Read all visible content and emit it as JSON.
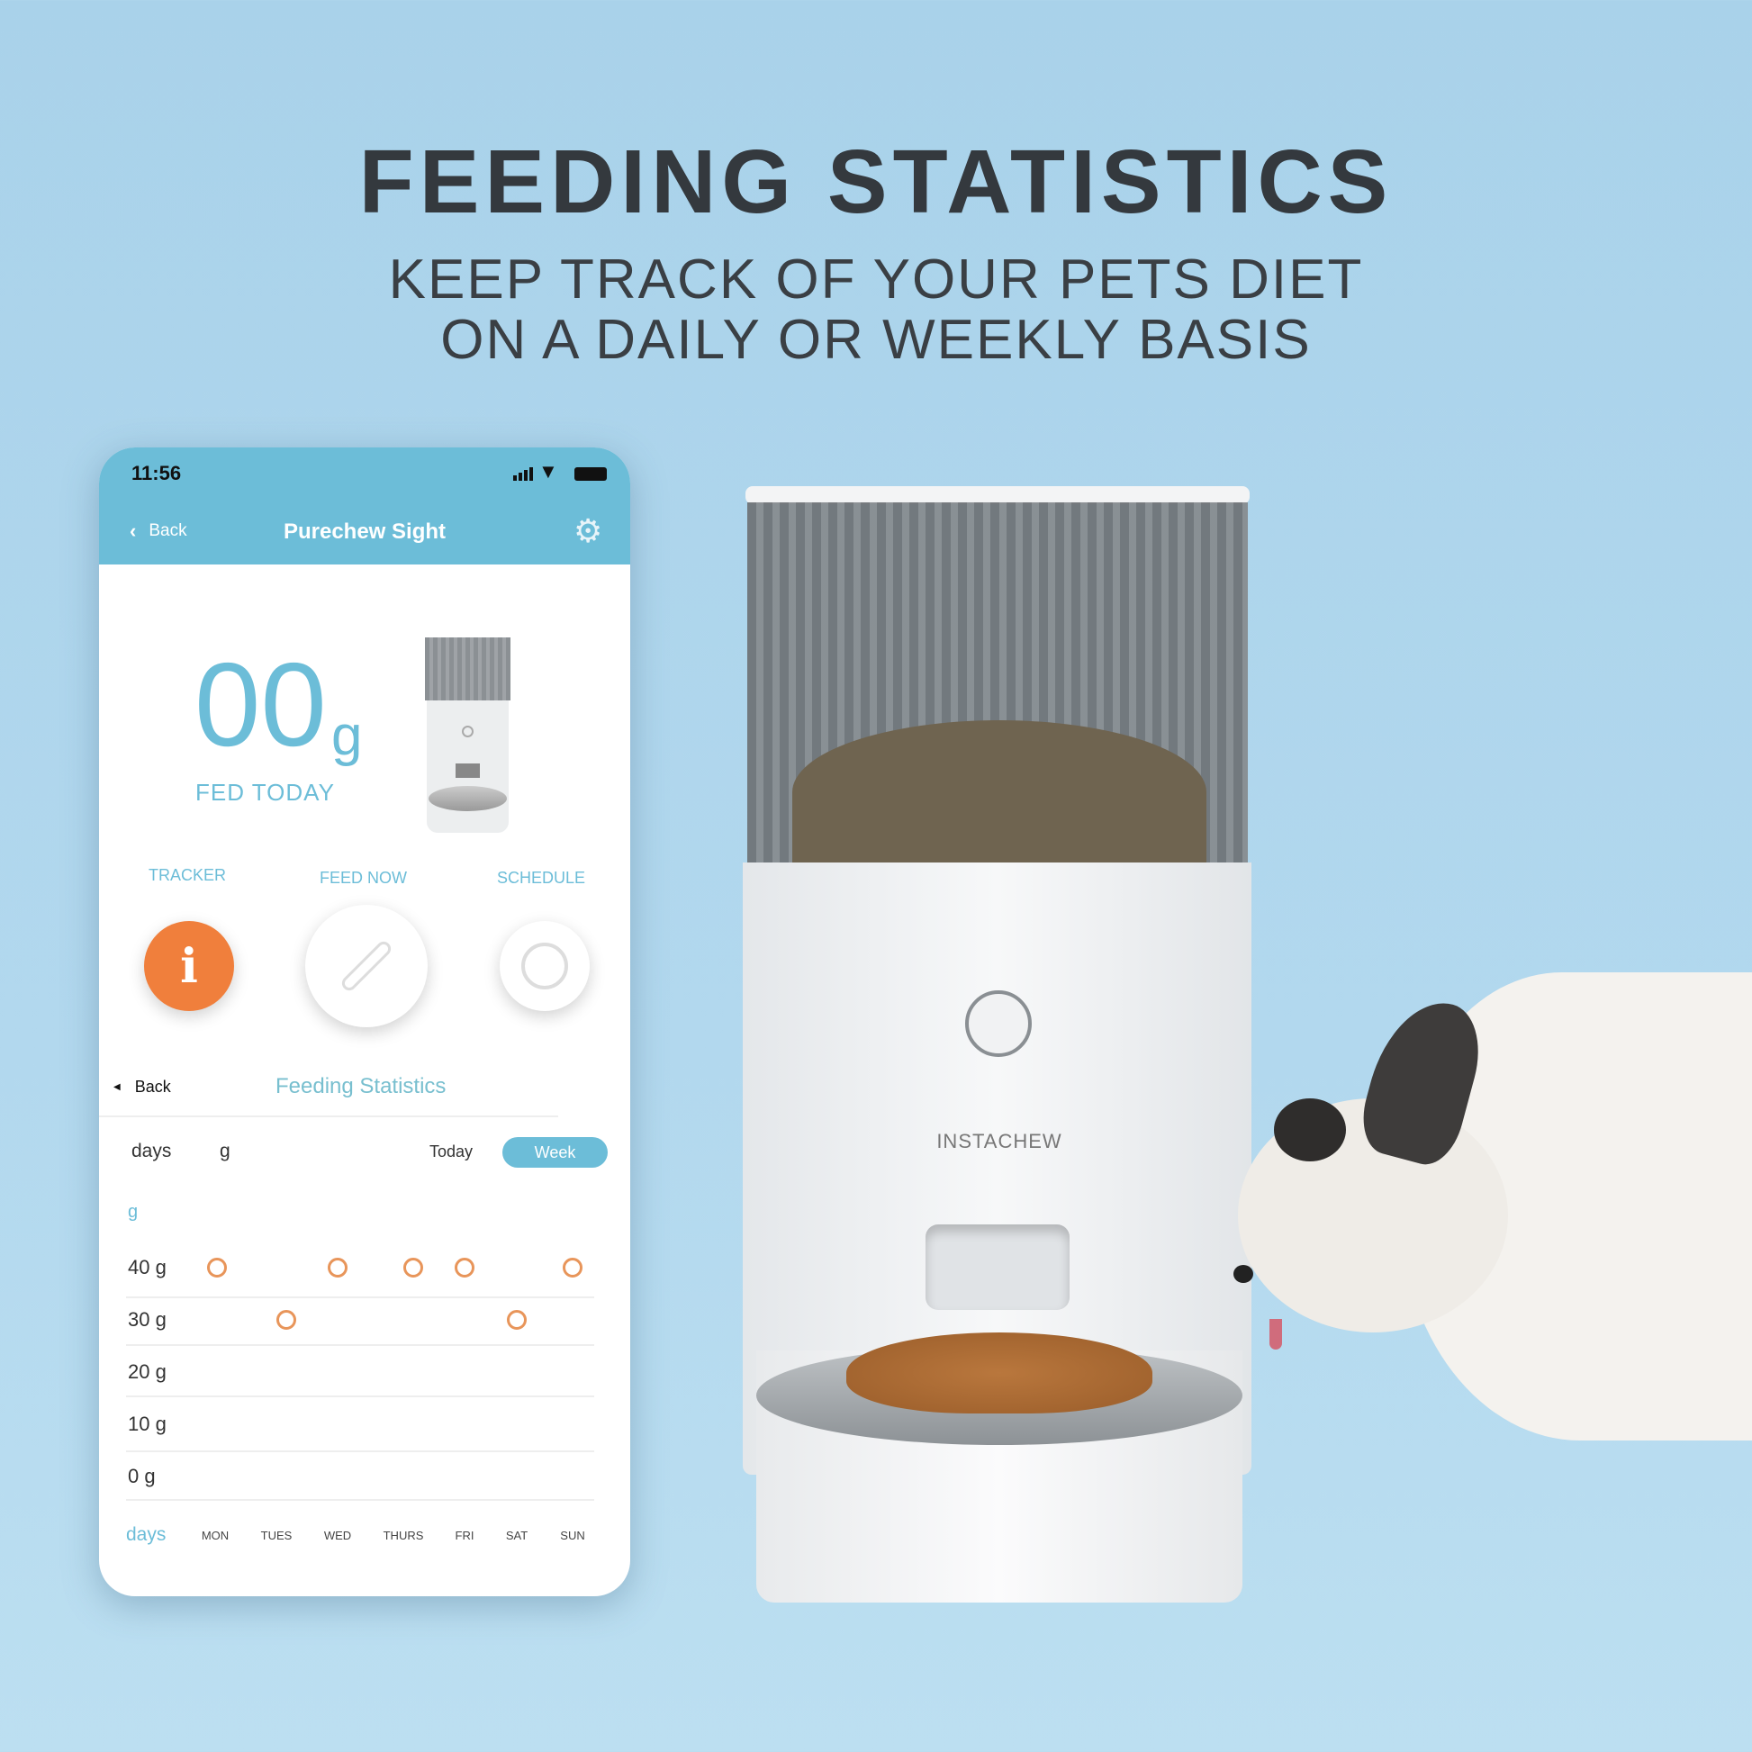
{
  "headline": {
    "title": "FEEDING STATISTICS",
    "subtitle_line1": "KEEP TRACK OF YOUR PETS DIET",
    "subtitle_line2": "ON A DAILY OR WEEKLY BASIS"
  },
  "device_brand": "INSTACHEW",
  "phone": {
    "status": {
      "time": "11:56",
      "icons": [
        "signal-icon",
        "wifi-icon",
        "battery-icon"
      ]
    },
    "nav": {
      "back_label": "Back",
      "title": "Purechew Sight",
      "settings_icon": "gear-icon"
    },
    "summary": {
      "amount": "00",
      "unit": "g",
      "label": "FED TODAY"
    },
    "actions": [
      {
        "label": "TRACKER",
        "icon": "info-icon",
        "color": "#f07f3c"
      },
      {
        "label": "FEED NOW",
        "icon": "bone-icon"
      },
      {
        "label": "SCHEDULE",
        "icon": "timer-icon"
      }
    ],
    "stats": {
      "back_label": "Back",
      "title": "Feeding Statistics",
      "col_days": "days",
      "col_unit": "g",
      "tab_today": "Today",
      "tab_week": "Week",
      "active_tab": "Week"
    }
  },
  "colors": {
    "accent": "#6cbdd8",
    "point": "#e8955a",
    "tracker": "#f07f3c"
  },
  "chart_data": {
    "type": "scatter",
    "ylabel": "g",
    "xlabel": "days",
    "categories": [
      "MON",
      "TUES",
      "WED",
      "THURS",
      "FRI",
      "SAT",
      "SUN"
    ],
    "yticks": [
      "40 g",
      "30 g",
      "20 g",
      "10 g",
      "0 g"
    ],
    "values": [
      40,
      30,
      40,
      40,
      40,
      30,
      40
    ],
    "ylim": [
      0,
      40
    ],
    "grid": true
  }
}
